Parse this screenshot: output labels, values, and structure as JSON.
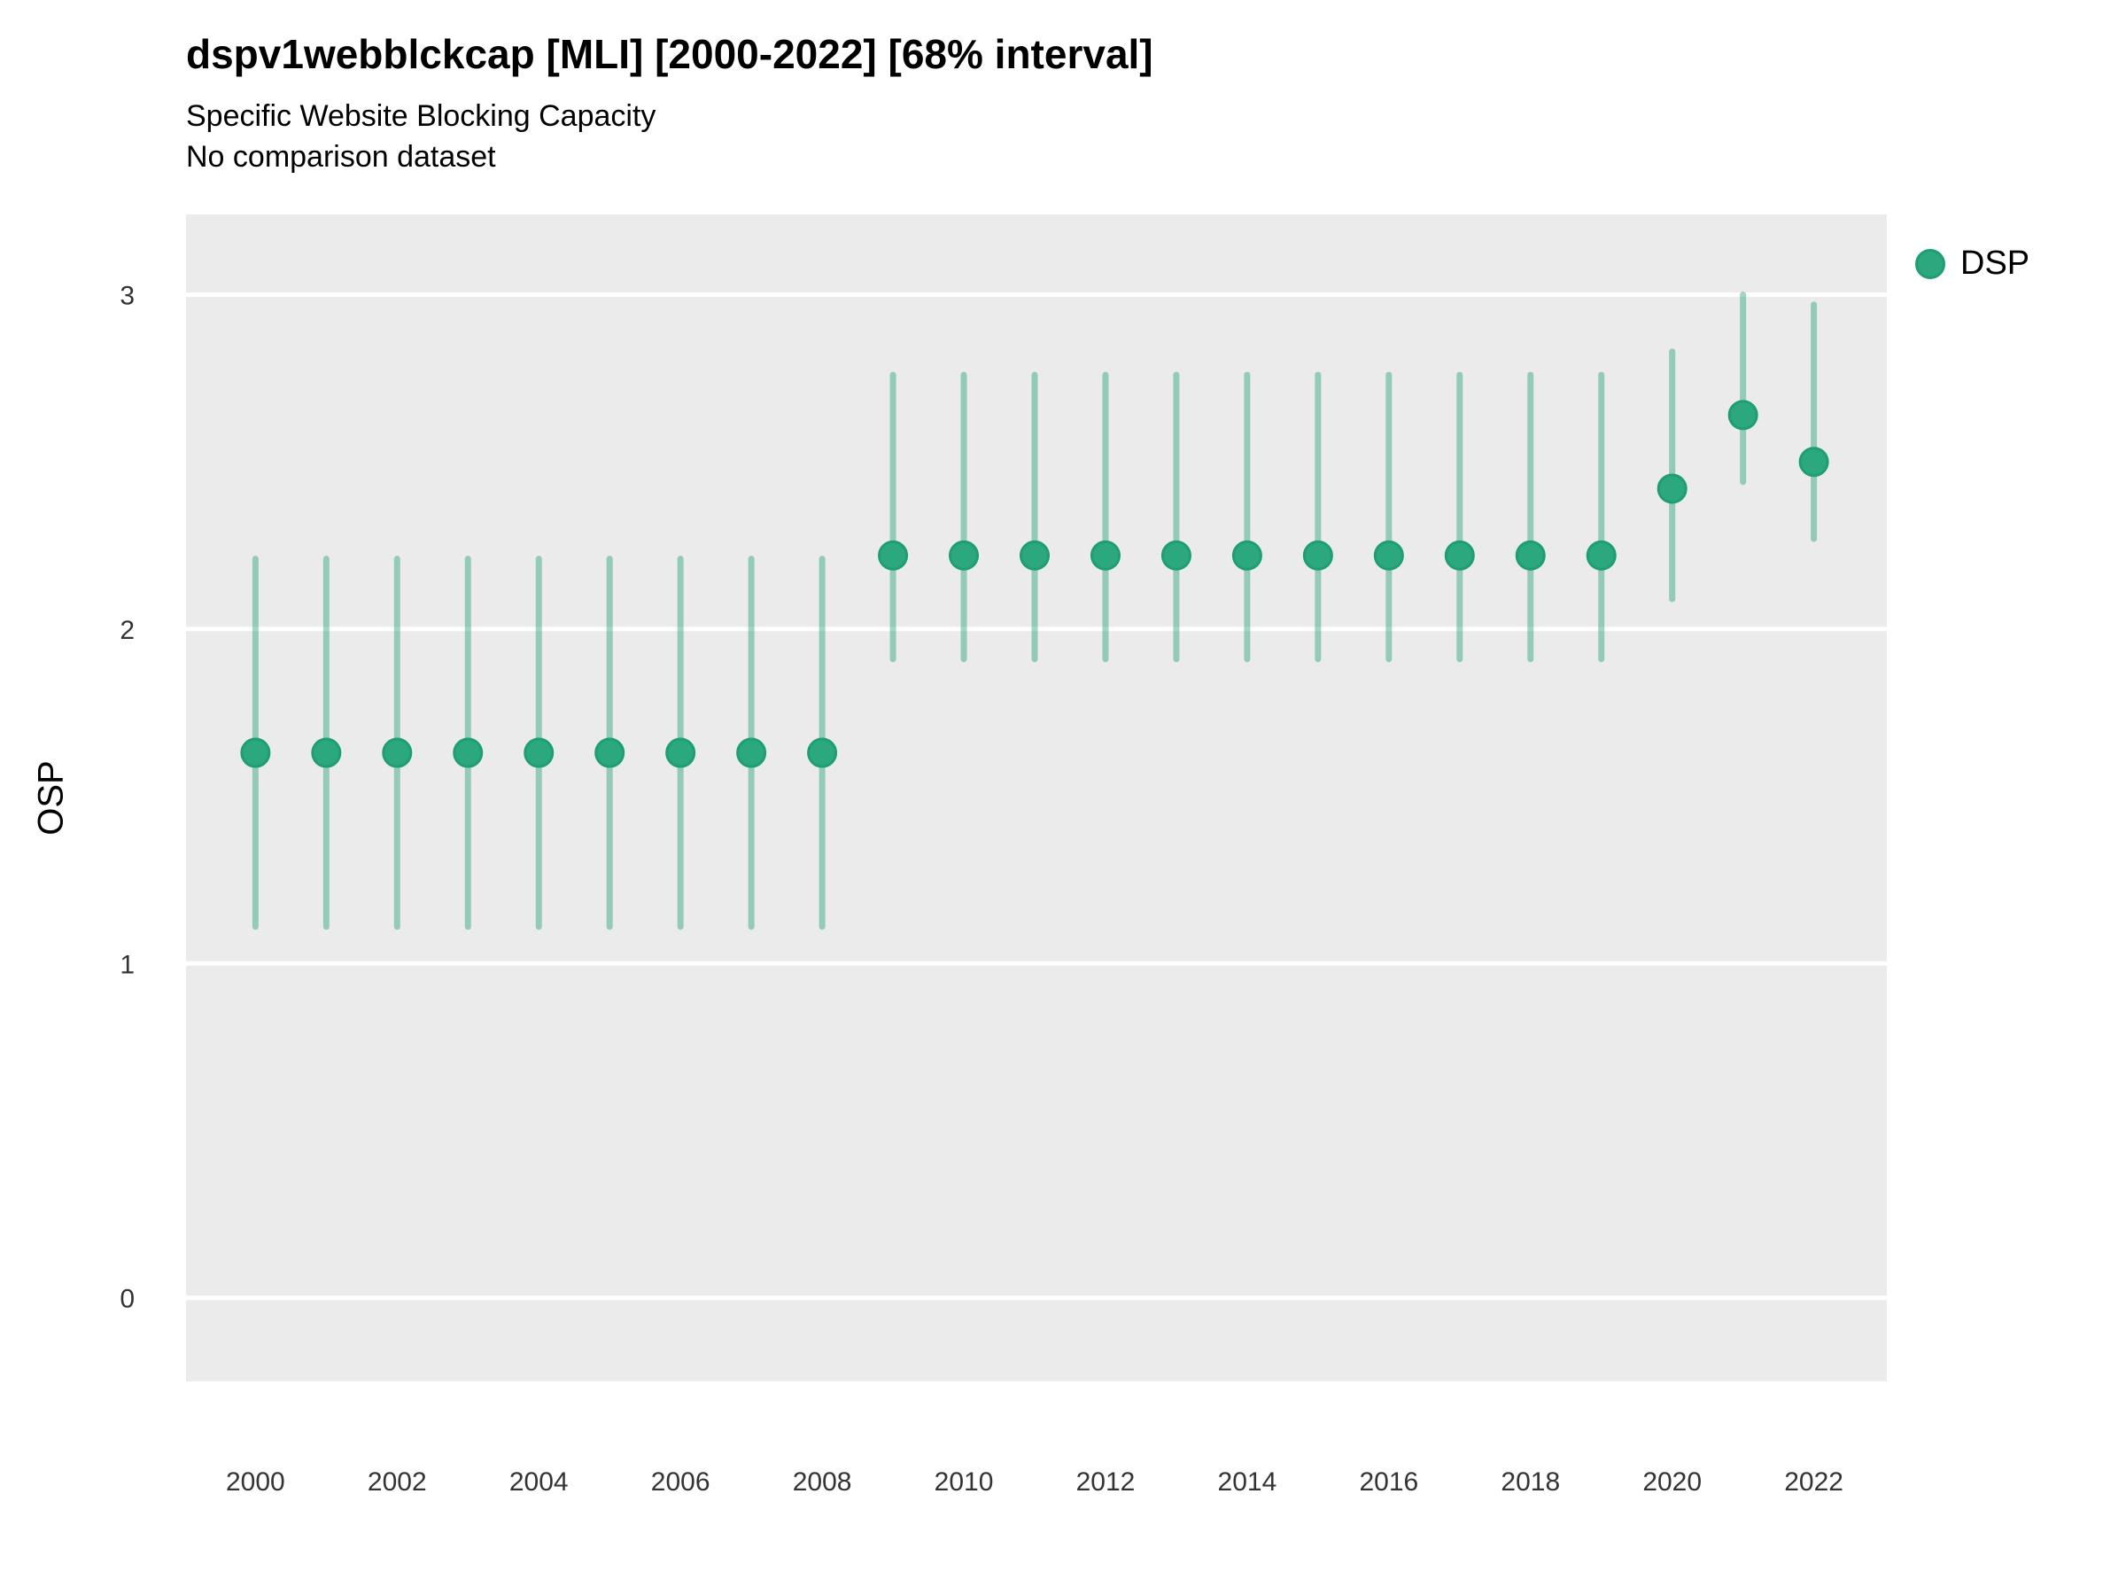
{
  "header": {
    "title": "dspv1webblckcap [MLI] [2000-2022] [68% interval]",
    "subtitle": "Specific Website Blocking Capacity",
    "note": "No comparison dataset"
  },
  "legend": {
    "position": "right",
    "items": [
      {
        "label": "DSP",
        "marker": "circle",
        "color": "#2BA87E"
      }
    ]
  },
  "axes": {
    "ylabel": "OSP",
    "xlabel": "",
    "y_tick_labels": [
      "0",
      "1",
      "2",
      "3"
    ],
    "x_tick_labels": [
      "2000",
      "2002",
      "2004",
      "2006",
      "2008",
      "2010",
      "2012",
      "2014",
      "2016",
      "2018",
      "2020",
      "2022"
    ]
  },
  "chart_data": {
    "type": "scatter",
    "subtype": "pointrange",
    "title": "dspv1webblckcap [MLI] [2000-2022] [68% interval]",
    "subtitle": "Specific Website Blocking Capacity",
    "note": "No comparison dataset",
    "interval": "68%",
    "xlabel": "",
    "ylabel": "OSP",
    "x": [
      2000,
      2001,
      2002,
      2003,
      2004,
      2005,
      2006,
      2007,
      2008,
      2009,
      2010,
      2011,
      2012,
      2013,
      2014,
      2015,
      2016,
      2017,
      2018,
      2019,
      2020,
      2021,
      2022
    ],
    "series": [
      {
        "name": "DSP",
        "values": [
          1.63,
          1.63,
          1.63,
          1.63,
          1.63,
          1.63,
          1.63,
          1.63,
          1.63,
          2.22,
          2.22,
          2.22,
          2.22,
          2.22,
          2.22,
          2.22,
          2.22,
          2.22,
          2.22,
          2.22,
          2.42,
          2.64,
          2.5
        ],
        "lower": [
          1.11,
          1.11,
          1.11,
          1.11,
          1.11,
          1.11,
          1.11,
          1.11,
          1.11,
          1.91,
          1.91,
          1.91,
          1.91,
          1.91,
          1.91,
          1.91,
          1.91,
          1.91,
          1.91,
          1.91,
          2.09,
          2.44,
          2.27
        ],
        "upper": [
          2.21,
          2.21,
          2.21,
          2.21,
          2.21,
          2.21,
          2.21,
          2.21,
          2.21,
          2.76,
          2.76,
          2.76,
          2.76,
          2.76,
          2.76,
          2.76,
          2.76,
          2.76,
          2.76,
          2.76,
          2.83,
          3.0,
          2.97
        ]
      }
    ],
    "x_ticks": [
      2000,
      2002,
      2004,
      2006,
      2008,
      2010,
      2012,
      2014,
      2016,
      2018,
      2020,
      2022
    ],
    "y_ticks": [
      0,
      1,
      2,
      3
    ],
    "xlim": [
      1999.02,
      2023.03
    ],
    "ylim": [
      -0.25,
      3.24
    ],
    "grid": "horizontal-major-only",
    "legend_position": "right",
    "style": {
      "panel_bg": "#EBEBEB",
      "grid_color": "#FFFFFF",
      "point_fill": "#2BA87E",
      "point_stroke": "#1E9E72",
      "range_color": "#1B9E77",
      "range_opacity": 0.42,
      "tick_label_color": "#333333"
    }
  }
}
